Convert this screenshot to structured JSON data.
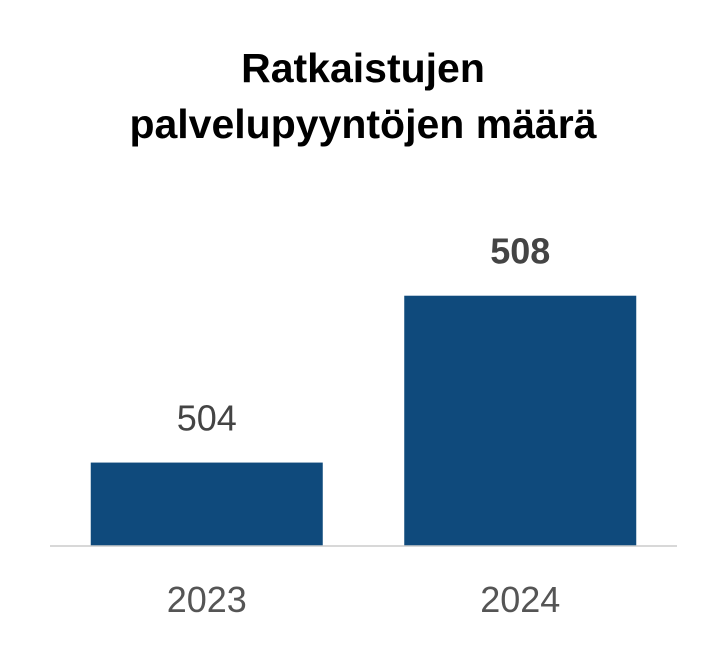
{
  "chart_data": {
    "type": "bar",
    "title": "Ratkaistujen palvelupyyntöjen määrä",
    "categories": [
      "2023",
      "2024"
    ],
    "values": [
      504,
      508
    ],
    "color": "#0f4a7c",
    "ylim": [
      502,
      509
    ]
  }
}
